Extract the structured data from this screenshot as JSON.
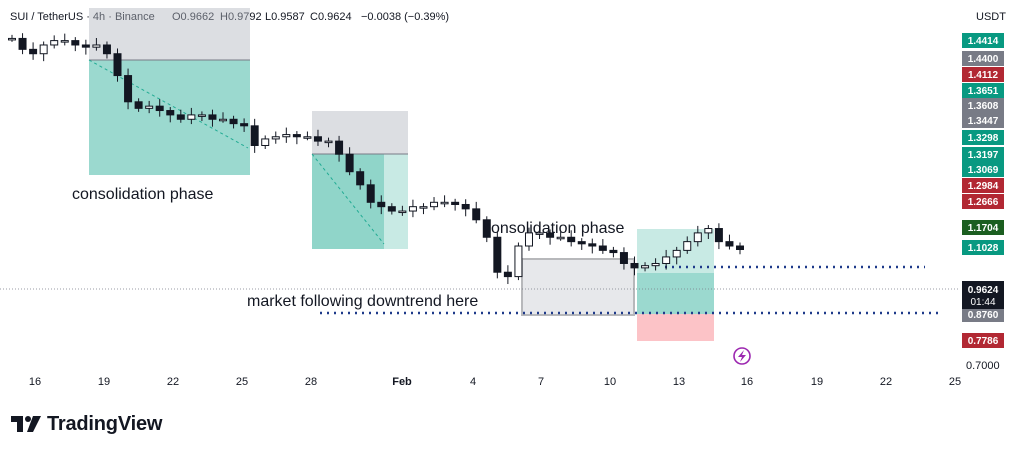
{
  "header": {
    "symbol": "SUI / TetherUS · 4h · Binance",
    "open": "O0.9662",
    "high": "H0.9792",
    "low": "L0.9587",
    "close": "C0.9624",
    "change": "−0.0038 (−0.39%)",
    "change_color": "#f23645"
  },
  "price_axis": {
    "currency": "USDT",
    "plain_label": "0.7000",
    "current": {
      "value": "0.9624",
      "countdown": "01:44",
      "color": "#131722"
    },
    "tags": [
      {
        "value": "1.4414",
        "color": "#089981"
      },
      {
        "value": "1.4400",
        "color": "#787b86"
      },
      {
        "value": "1.4112",
        "color": "#b22833"
      },
      {
        "value": "1.3651",
        "color": "#089981"
      },
      {
        "value": "1.3608",
        "color": "#787b86"
      },
      {
        "value": "1.3447",
        "color": "#787b86"
      },
      {
        "value": "1.3298",
        "color": "#089981"
      },
      {
        "value": "1.3197",
        "color": "#089981"
      },
      {
        "value": "1.3069",
        "color": "#089981"
      },
      {
        "value": "1.2984",
        "color": "#b22833"
      },
      {
        "value": "1.2666",
        "color": "#b22833"
      },
      {
        "value": "1.1704",
        "color": "#1b5e20"
      },
      {
        "value": "1.1028",
        "color": "#089981"
      },
      {
        "value": "0.8760",
        "color": "#787b86"
      },
      {
        "value": "0.7786",
        "color": "#b22833"
      }
    ]
  },
  "time_axis": [
    "16",
    "19",
    "22",
    "25",
    "28",
    "Feb",
    "4",
    "7",
    "10",
    "13",
    "16",
    "19",
    "22",
    "25"
  ],
  "annotations": {
    "consolidation_1": "consolidation phase",
    "consolidation_2": "consolidation phase",
    "downtrend": "market following downtrend here"
  },
  "branding": {
    "name": "TradingView",
    "icon": "tradingview-logo-icon"
  },
  "colors": {
    "up": "#131722",
    "down": "#131722",
    "long_profit": "#22ab94",
    "short_stop": "#b2b5be",
    "loss": "#f7525f",
    "dotted_line": "#2962ff",
    "flash_icon": "#9c27b0"
  },
  "chart_data": {
    "type": "candlestick",
    "series": [
      {
        "name": "SUI / TetherUS",
        "ohlc_close_path": [
          1.445,
          1.42,
          1.41,
          1.43,
          1.44,
          1.44,
          1.43,
          1.425,
          1.43,
          1.41,
          1.36,
          1.3,
          1.285,
          1.29,
          1.28,
          1.27,
          1.26,
          1.27,
          1.27,
          1.26,
          1.26,
          1.25,
          1.245,
          1.2,
          1.215,
          1.22,
          1.225,
          1.22,
          1.22,
          1.21,
          1.21,
          1.18,
          1.14,
          1.11,
          1.07,
          1.06,
          1.05,
          1.05,
          1.06,
          1.06,
          1.07,
          1.07,
          1.065,
          1.055,
          1.03,
          0.99,
          0.91,
          0.9,
          0.97,
          1.0,
          1.0,
          0.99,
          0.99,
          0.98,
          0.975,
          0.97,
          0.96,
          0.955,
          0.93,
          0.92,
          0.925,
          0.93,
          0.945,
          0.96,
          0.98,
          1.0,
          1.01,
          0.98,
          0.97,
          0.962
        ]
      }
    ],
    "price_range": [
      0.7,
      1.45
    ],
    "dates": [
      "16",
      "19",
      "22",
      "25",
      "28",
      "Feb",
      "4",
      "7",
      "10",
      "13",
      "16",
      "19",
      "22",
      "25"
    ],
    "grid": false
  }
}
